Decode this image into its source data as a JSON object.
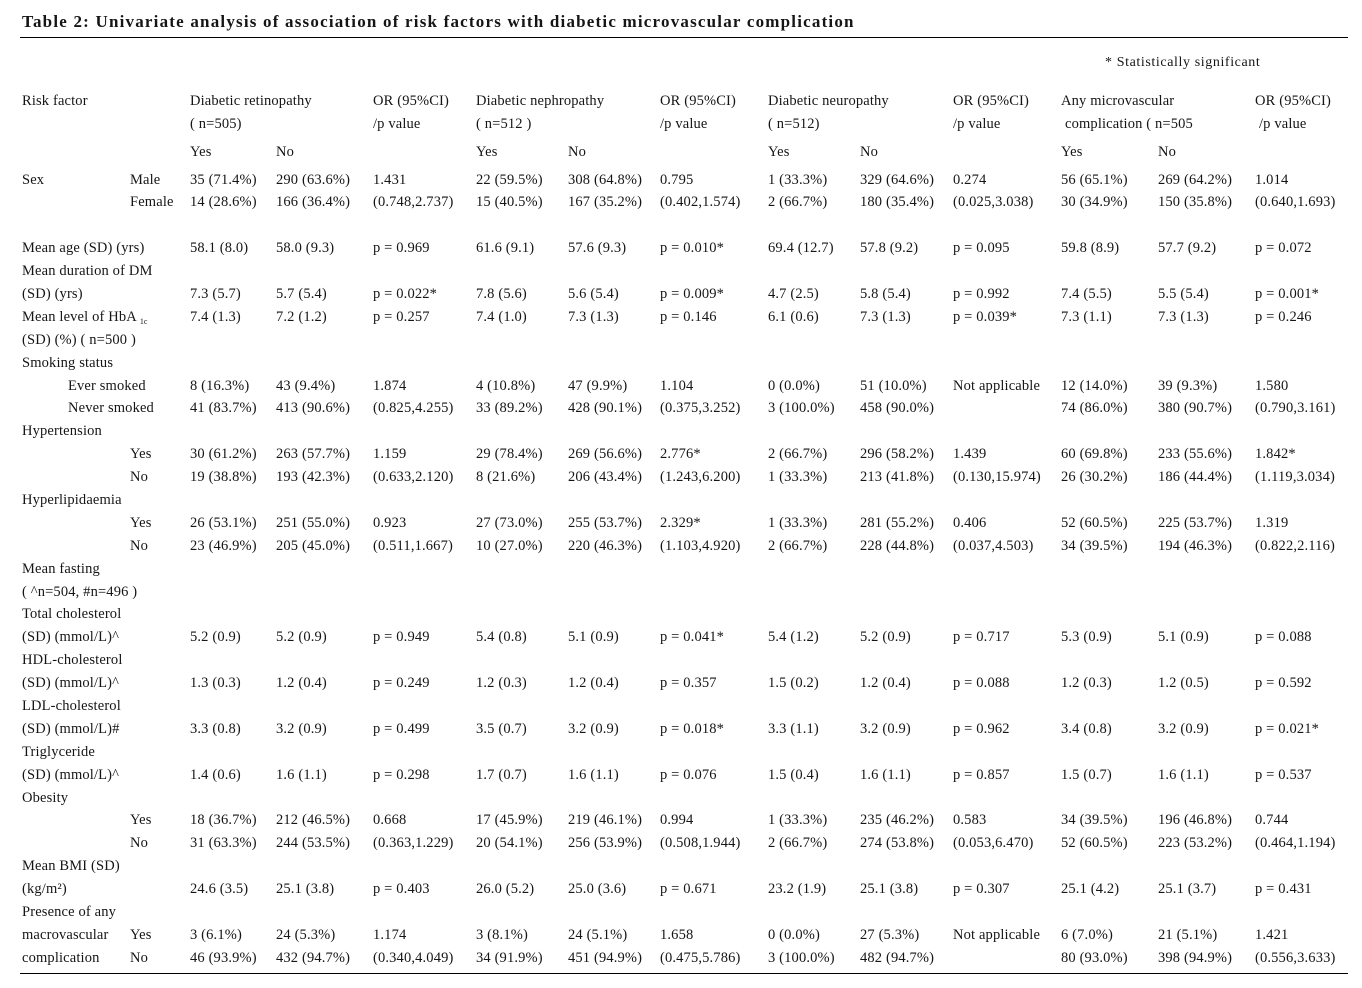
{
  "title": "Table 2: Univariate analysis of association of risk factors with diabetic microvascular complication",
  "note": "* Statistically significant",
  "header": {
    "risk_factor": "Risk factor",
    "groups": [
      {
        "name": "Diabetic retinopathy",
        "n": "( n=505)",
        "or_label": "OR (95%CI)",
        "p_label": "/p value",
        "yes": "Yes",
        "no": "No"
      },
      {
        "name": "Diabetic nephropathy",
        "n": "( n=512 )",
        "or_label": "OR (95%CI)",
        "p_label": "/p value",
        "yes": "Yes",
        "no": "No"
      },
      {
        "name": "Diabetic neuropathy",
        "n": "( n=512)",
        "or_label": "OR (95%CI)",
        "p_label": "/p value",
        "yes": "Yes",
        "no": "No"
      },
      {
        "name": "Any microvascular",
        "n": "complication ( n=505",
        "or_label": "OR (95%CI)",
        "p_label": "/p value",
        "yes": "Yes",
        "no": "No"
      }
    ]
  },
  "rows": [
    {
      "factor": "Sex",
      "group": "Male",
      "dr_yes": "35 (71.4%)",
      "dr_no": "290 (63.6%)",
      "dr_or": "1.431",
      "dn_yes": "22 (59.5%)",
      "dn_no": "308 (64.8%)",
      "dn_or": "0.795",
      "neu_yes": "1 (33.3%)",
      "neu_no": "329 (64.6%)",
      "neu_or": "0.274",
      "any_yes": "56 (65.1%)",
      "any_no": "269 (64.2%)",
      "any_or": "1.014"
    },
    {
      "group": "Female",
      "dr_yes": "14 (28.6%)",
      "dr_no": "166 (36.4%)",
      "dr_or": "(0.748,2.737)",
      "dn_yes": "15 (40.5%)",
      "dn_no": "167 (35.2%)",
      "dn_or": "(0.402,1.574)",
      "neu_yes": "2 (66.7%)",
      "neu_no": "180 (35.4%)",
      "neu_or": "(0.025,3.038)",
      "any_yes": "30 (34.9%)",
      "any_no": "150 (35.8%)",
      "any_or": "(0.640,1.693)"
    },
    {
      "factor": "Mean age (SD) (yrs)",
      "dr_yes": "58.1 (8.0)",
      "dr_no": "58.0 (9.3)",
      "dr_or": "p = 0.969",
      "dn_yes": "61.6 (9.1)",
      "dn_no": "57.6 (9.3)",
      "dn_or": "p = 0.010*",
      "neu_yes": "69.4 (12.7)",
      "neu_no": "57.8 (9.2)",
      "neu_or": "p = 0.095",
      "any_yes": "59.8 (8.9)",
      "any_no": "57.7 (9.2)",
      "any_or": "p = 0.072"
    },
    {
      "factor": "Mean duration of DM"
    },
    {
      "factor": "(SD) (yrs)",
      "dr_yes": "7.3 (5.7)",
      "dr_no": "5.7 (5.4)",
      "dr_or": "p = 0.022*",
      "dn_yes": "7.8 (5.6)",
      "dn_no": "5.6 (5.4)",
      "dn_or": "p = 0.009*",
      "neu_yes": "4.7 (2.5)",
      "neu_no": "5.8 (5.4)",
      "neu_or": "p = 0.992",
      "any_yes": "7.4 (5.5)",
      "any_no": "5.5 (5.4)",
      "any_or": "p = 0.001*"
    },
    {
      "factor": "Mean level of HbA",
      "factor_sub": "1c",
      "dr_yes": "7.4 (1.3)",
      "dr_no": "7.2 (1.2)",
      "dr_or": "p = 0.257",
      "dn_yes": "7.4 (1.0)",
      "dn_no": "7.3 (1.3)",
      "dn_or": "p = 0.146",
      "neu_yes": "6.1 (0.6)",
      "neu_no": "7.3 (1.3)",
      "neu_or": "p = 0.039*",
      "any_yes": "7.3 (1.1)",
      "any_no": "7.3 (1.3)",
      "any_or": "p = 0.246"
    },
    {
      "factor": "(SD) (%) ( n=500 )"
    },
    {
      "factor": "Smoking status"
    },
    {
      "subfactor": "Ever smoked",
      "dr_yes": "8 (16.3%)",
      "dr_no": "43 (9.4%)",
      "dr_or": "1.874",
      "dn_yes": "4 (10.8%)",
      "dn_no": "47 (9.9%)",
      "dn_or": "1.104",
      "neu_yes": "0 (0.0%)",
      "neu_no": "51 (10.0%)",
      "neu_or": "Not applicable",
      "any_yes": "12 (14.0%)",
      "any_no": "39 (9.3%)",
      "any_or": "1.580"
    },
    {
      "subfactor": "Never smoked",
      "dr_yes": "41 (83.7%)",
      "dr_no": "413 (90.6%)",
      "dr_or": "(0.825,4.255)",
      "dn_yes": "33 (89.2%)",
      "dn_no": "428 (90.1%)",
      "dn_or": "(0.375,3.252)",
      "neu_yes": "3 (100.0%)",
      "neu_no": "458 (90.0%)",
      "any_yes": "74 (86.0%)",
      "any_no": "380 (90.7%)",
      "any_or": "(0.790,3.161)"
    },
    {
      "factor": "Hypertension"
    },
    {
      "group": "Yes",
      "dr_yes": "30 (61.2%)",
      "dr_no": "263 (57.7%)",
      "dr_or": "1.159",
      "dn_yes": "29 (78.4%)",
      "dn_no": "269 (56.6%)",
      "dn_or": "2.776*",
      "neu_yes": "2 (66.7%)",
      "neu_no": "296 (58.2%)",
      "neu_or": "1.439",
      "any_yes": "60 (69.8%)",
      "any_no": "233 (55.6%)",
      "any_or": "1.842*"
    },
    {
      "group": "No",
      "dr_yes": "19 (38.8%)",
      "dr_no": "193 (42.3%)",
      "dr_or": "(0.633,2.120)",
      "dn_yes": "8 (21.6%)",
      "dn_no": "206 (43.4%)",
      "dn_or": "(1.243,6.200)",
      "neu_yes": "1 (33.3%)",
      "neu_no": "213 (41.8%)",
      "neu_or": "(0.130,15.974)",
      "any_yes": "26 (30.2%)",
      "any_no": "186 (44.4%)",
      "any_or": "(1.119,3.034)"
    },
    {
      "factor": "Hyperlipidaemia"
    },
    {
      "group": "Yes",
      "dr_yes": "26 (53.1%)",
      "dr_no": "251 (55.0%)",
      "dr_or": "0.923",
      "dn_yes": "27 (73.0%)",
      "dn_no": "255 (53.7%)",
      "dn_or": "2.329*",
      "neu_yes": "1 (33.3%)",
      "neu_no": "281 (55.2%)",
      "neu_or": "0.406",
      "any_yes": "52 (60.5%)",
      "any_no": "225 (53.7%)",
      "any_or": "1.319"
    },
    {
      "group": "No",
      "dr_yes": "23 (46.9%)",
      "dr_no": "205 (45.0%)",
      "dr_or": "(0.511,1.667)",
      "dn_yes": "10 (27.0%)",
      "dn_no": "220 (46.3%)",
      "dn_or": "(1.103,4.920)",
      "neu_yes": "2 (66.7%)",
      "neu_no": "228 (44.8%)",
      "neu_or": "(0.037,4.503)",
      "any_yes": "34 (39.5%)",
      "any_no": "194 (46.3%)",
      "any_or": "(0.822,2.116)"
    },
    {
      "factor": "Mean fasting"
    },
    {
      "factor": "( ^n=504, #n=496 )"
    },
    {
      "factor": "Total cholesterol"
    },
    {
      "factor": "(SD) (mmol/L)^",
      "dr_yes": "5.2 (0.9)",
      "dr_no": "5.2 (0.9)",
      "dr_or": "p = 0.949",
      "dn_yes": "5.4 (0.8)",
      "dn_no": "5.1 (0.9)",
      "dn_or": "p = 0.041*",
      "neu_yes": "5.4 (1.2)",
      "neu_no": "5.2 (0.9)",
      "neu_or": "p = 0.717",
      "any_yes": "5.3 (0.9)",
      "any_no": "5.1 (0.9)",
      "any_or": "p = 0.088"
    },
    {
      "factor": "HDL-cholesterol"
    },
    {
      "factor": "(SD) (mmol/L)^",
      "dr_yes": "1.3 (0.3)",
      "dr_no": "1.2 (0.4)",
      "dr_or": "p = 0.249",
      "dn_yes": "1.2 (0.3)",
      "dn_no": "1.2 (0.4)",
      "dn_or": "p = 0.357",
      "neu_yes": "1.5 (0.2)",
      "neu_no": "1.2 (0.4)",
      "neu_or": "p = 0.088",
      "any_yes": "1.2 (0.3)",
      "any_no": "1.2 (0.5)",
      "any_or": "p = 0.592"
    },
    {
      "factor": "LDL-cholesterol"
    },
    {
      "factor": "(SD) (mmol/L)#",
      "dr_yes": "3.3 (0.8)",
      "dr_no": "3.2 (0.9)",
      "dr_or": "p = 0.499",
      "dn_yes": "3.5 (0.7)",
      "dn_no": "3.2 (0.9)",
      "dn_or": "p = 0.018*",
      "neu_yes": "3.3 (1.1)",
      "neu_no": "3.2 (0.9)",
      "neu_or": "p = 0.962",
      "any_yes": "3.4 (0.8)",
      "any_no": "3.2 (0.9)",
      "any_or": "p = 0.021*"
    },
    {
      "factor": "Triglyceride"
    },
    {
      "factor": "(SD) (mmol/L)^",
      "dr_yes": "1.4 (0.6)",
      "dr_no": "1.6 (1.1)",
      "dr_or": "p = 0.298",
      "dn_yes": "1.7 (0.7)",
      "dn_no": "1.6 (1.1)",
      "dn_or": "p = 0.076",
      "neu_yes": "1.5 (0.4)",
      "neu_no": "1.6 (1.1)",
      "neu_or": "p = 0.857",
      "any_yes": "1.5 (0.7)",
      "any_no": "1.6 (1.1)",
      "any_or": "p = 0.537"
    },
    {
      "factor": "Obesity"
    },
    {
      "group": "Yes",
      "dr_yes": "18 (36.7%)",
      "dr_no": "212 (46.5%)",
      "dr_or": "0.668",
      "dn_yes": "17 (45.9%)",
      "dn_no": "219 (46.1%)",
      "dn_or": "0.994",
      "neu_yes": "1 (33.3%)",
      "neu_no": "235 (46.2%)",
      "neu_or": "0.583",
      "any_yes": "34 (39.5%)",
      "any_no": "196 (46.8%)",
      "any_or": "0.744"
    },
    {
      "group": "No",
      "dr_yes": "31 (63.3%)",
      "dr_no": "244 (53.5%)",
      "dr_or": "(0.363,1.229)",
      "dn_yes": "20 (54.1%)",
      "dn_no": "256 (53.9%)",
      "dn_or": "(0.508,1.944)",
      "neu_yes": "2 (66.7%)",
      "neu_no": "274 (53.8%)",
      "neu_or": "(0.053,6.470)",
      "any_yes": "52 (60.5%)",
      "any_no": "223 (53.2%)",
      "any_or": "(0.464,1.194)"
    },
    {
      "factor": "Mean BMI (SD)"
    },
    {
      "factor": "(kg/m²)",
      "dr_yes": "24.6 (3.5)",
      "dr_no": "25.1 (3.8)",
      "dr_or": "p = 0.403",
      "dn_yes": "26.0 (5.2)",
      "dn_no": "25.0 (3.6)",
      "dn_or": "p = 0.671",
      "neu_yes": "23.2 (1.9)",
      "neu_no": "25.1 (3.8)",
      "neu_or": "p = 0.307",
      "any_yes": "25.1 (4.2)",
      "any_no": "25.1 (3.7)",
      "any_or": "p = 0.431"
    },
    {
      "factor": "Presence of any"
    },
    {
      "factor": "macrovascular",
      "group": "Yes",
      "dr_yes": "3 (6.1%)",
      "dr_no": "24 (5.3%)",
      "dr_or": "1.174",
      "dn_yes": "3 (8.1%)",
      "dn_no": "24 (5.1%)",
      "dn_or": "1.658",
      "neu_yes": "0 (0.0%)",
      "neu_no": "27 (5.3%)",
      "neu_or": "Not applicable",
      "any_yes": "6 (7.0%)",
      "any_no": "21 (5.1%)",
      "any_or": "1.421"
    },
    {
      "factor": "complication",
      "group": "No",
      "dr_yes": "46 (93.9%)",
      "dr_no": "432 (94.7%)",
      "dr_or": "(0.340,4.049)",
      "dn_yes": "34 (91.9%)",
      "dn_no": "451 (94.9%)",
      "dn_or": "(0.475,5.786)",
      "neu_yes": "3 (100.0%)",
      "neu_no": "482 (94.7%)",
      "any_yes": "80 (93.0%)",
      "any_no": "398 (94.9%)",
      "any_or": "(0.556,3.633)"
    }
  ]
}
